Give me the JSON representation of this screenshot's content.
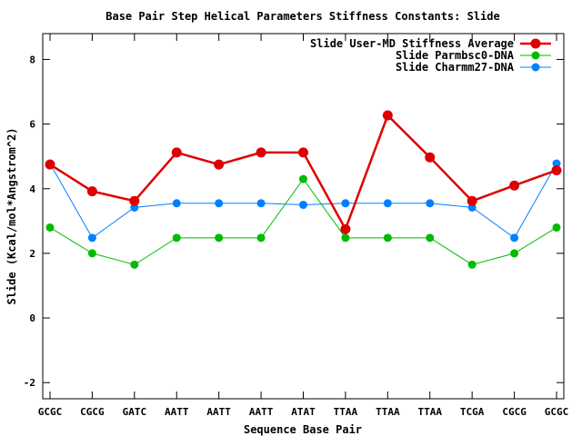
{
  "chart_data": {
    "type": "line",
    "title": "Base Pair Step Helical Parameters Stiffness Constants: Slide",
    "xlabel": "Sequence Base Pair",
    "ylabel": "Slide (Kcal/mol*Angstrom^2)",
    "categories": [
      "GCGC",
      "CGCG",
      "GATC",
      "AATT",
      "AATT",
      "AATT",
      "ATAT",
      "TTAA",
      "TTAA",
      "TTAA",
      "TCGA",
      "CGCG",
      "GCGC"
    ],
    "ylim": [
      -2.5,
      8.8
    ],
    "yticks": [
      -2,
      0,
      2,
      4,
      6,
      8
    ],
    "grid": false,
    "legend_position": "top-right",
    "series": [
      {
        "name": "Slide User-MD Stiffness Average",
        "color": "#dd0000",
        "values": [
          4.75,
          3.92,
          3.62,
          5.12,
          4.75,
          5.12,
          5.12,
          2.75,
          6.27,
          4.97,
          3.62,
          4.1,
          4.57
        ]
      },
      {
        "name": "Slide Parmbsc0-DNA",
        "color": "#00bb00",
        "values": [
          2.8,
          2.0,
          1.65,
          2.48,
          2.48,
          2.48,
          4.3,
          2.48,
          2.48,
          2.48,
          1.65,
          2.0,
          2.8
        ]
      },
      {
        "name": "Slide Charmm27-DNA",
        "color": "#0080ff",
        "values": [
          4.78,
          2.48,
          3.42,
          3.55,
          3.55,
          3.55,
          3.5,
          3.55,
          3.55,
          3.55,
          3.42,
          2.48,
          4.78
        ]
      }
    ]
  }
}
